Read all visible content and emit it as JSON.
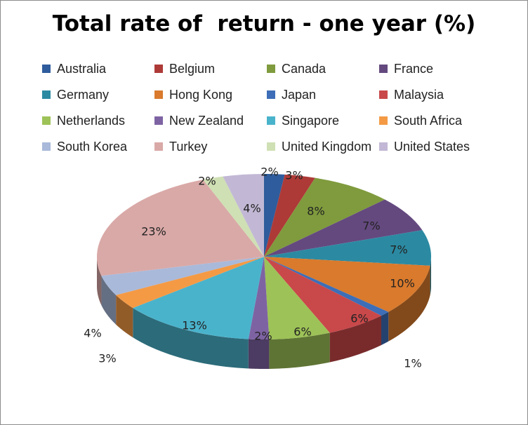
{
  "chart_data": {
    "type": "pie",
    "title": "Total rate of  return - one year (%)",
    "legend_position": "top",
    "slices": [
      {
        "name": "Australia",
        "value": 2,
        "label": "2%",
        "color": "#2f5c9c"
      },
      {
        "name": "Belgium",
        "value": 3,
        "label": "3%",
        "color": "#ad3a37"
      },
      {
        "name": "Canada",
        "value": 8,
        "label": "8%",
        "color": "#7f9b3d"
      },
      {
        "name": "France",
        "value": 7,
        "label": "7%",
        "color": "#64497f"
      },
      {
        "name": "Germany",
        "value": 7,
        "label": "7%",
        "color": "#2b8aa2"
      },
      {
        "name": "Hong Kong",
        "value": 10,
        "label": "10%",
        "color": "#d97a2c"
      },
      {
        "name": "Japan",
        "value": 1,
        "label": "1%",
        "color": "#3d6eb7"
      },
      {
        "name": "Malaysia",
        "value": 6,
        "label": "6%",
        "color": "#c9484a"
      },
      {
        "name": "Netherlands",
        "value": 6,
        "label": "6%",
        "color": "#9dc257"
      },
      {
        "name": "New Zealand",
        "value": 2,
        "label": "2%",
        "color": "#7e63a3"
      },
      {
        "name": "Singapore",
        "value": 13,
        "label": "13%",
        "color": "#4ab3cc"
      },
      {
        "name": "South Africa",
        "value": 3,
        "label": "3%",
        "color": "#f49a45"
      },
      {
        "name": "South Korea",
        "value": 4,
        "label": "4%",
        "color": "#a9b9da"
      },
      {
        "name": "Turkey",
        "value": 23,
        "label": "23%",
        "color": "#d9a9a7"
      },
      {
        "name": "United Kingdom",
        "value": 2,
        "label": "2%",
        "color": "#cfe0b4"
      },
      {
        "name": "United States",
        "value": 4,
        "label": "4%",
        "color": "#c2b8d5"
      }
    ]
  }
}
